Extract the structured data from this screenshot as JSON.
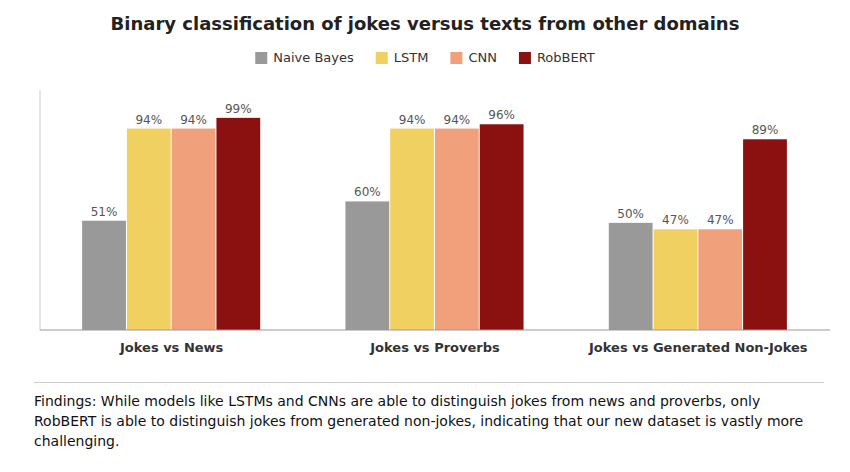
{
  "chart_data": {
    "type": "bar",
    "title": "Binary classification of jokes versus texts from other domains",
    "categories": [
      "Jokes vs News",
      "Jokes vs Proverbs",
      "Jokes vs Generated Non-Jokes"
    ],
    "series": [
      {
        "name": "Naive Bayes",
        "color": "#999999",
        "values": [
          51,
          60,
          50
        ],
        "value_labels": [
          "51%",
          "60%",
          "50%"
        ]
      },
      {
        "name": "LSTM",
        "color": "#F0D060",
        "values": [
          94,
          94,
          47
        ],
        "value_labels": [
          "94%",
          "94%",
          "47%"
        ]
      },
      {
        "name": "CNN",
        "color": "#F0A07A",
        "values": [
          94,
          94,
          47
        ],
        "value_labels": [
          "94%",
          "94%",
          "47%"
        ]
      },
      {
        "name": "RobBERT",
        "color": "#8B1010",
        "values": [
          99,
          96,
          89
        ],
        "value_labels": [
          "99%",
          "96%",
          "89%"
        ]
      }
    ],
    "ylim": [
      0,
      112
    ],
    "grid": false,
    "legend": "top",
    "data_labels": true,
    "tick_labels": "x",
    "annotations": [
      "Findings: While models like LSTMs and CNNs are able to distinguish jokes from news and proverbs, only RobBERT is able to distinguish jokes from generated non-jokes, indicating that our new dataset is vastly more challenging."
    ]
  }
}
